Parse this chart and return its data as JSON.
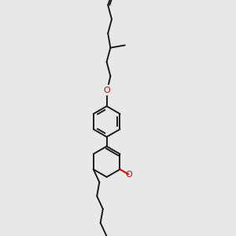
{
  "background_color": "#e8e8e8",
  "bond_color": "#1a1a1a",
  "oxygen_color": "#cc0000",
  "lw": 1.4,
  "fig_width": 3.0,
  "fig_height": 3.0,
  "dpi": 100,
  "xlim": [
    0,
    10
  ],
  "ylim": [
    0,
    10
  ]
}
